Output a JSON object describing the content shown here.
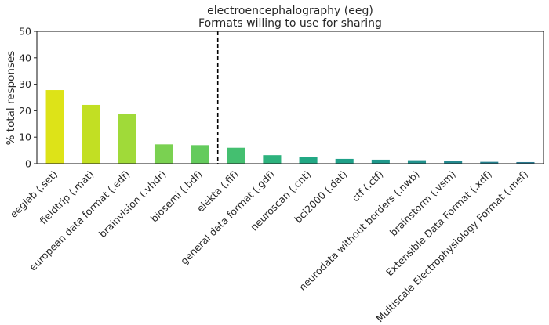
{
  "chart_data": {
    "type": "bar",
    "title": "electroencephalography (eeg)",
    "subtitle": "Formats willing to use for sharing",
    "xlabel": "",
    "ylabel": "% total responses",
    "ylim": [
      0,
      50
    ],
    "yticks": [
      0,
      10,
      20,
      30,
      40,
      50
    ],
    "grid": false,
    "categories": [
      "eeglab (.set)",
      "fieldtrip (.mat)",
      "european data format (.edf)",
      "brainvision (.vhdr)",
      "biosemi (.bdf)",
      "elekta (.fif)",
      "general data format (.gdf)",
      "neuroscan (.cnt)",
      "bci2000 (.dat)",
      "ctf (.ctf)",
      "neurodata without borders (.nwb)",
      "brainstorm (.vsm)",
      "Extensible Data Format (.xdf)",
      "Multiscale Electrophysiology Format (.mef)"
    ],
    "values": [
      27.8,
      22.2,
      18.9,
      7.3,
      7.0,
      6.0,
      3.2,
      2.5,
      1.8,
      1.5,
      1.3,
      1.0,
      0.7,
      0.6
    ],
    "colors": [
      "#dde318",
      "#c2df23",
      "#a0da39",
      "#7ad151",
      "#64cb5d",
      "#44bf70",
      "#2db27d",
      "#22a884",
      "#1fa088",
      "#1f988b",
      "#21918c",
      "#23888e",
      "#26818e",
      "#2a788e"
    ],
    "reference_line": {
      "after_category_index": 4,
      "style": "dashed",
      "color": "#000000"
    }
  }
}
